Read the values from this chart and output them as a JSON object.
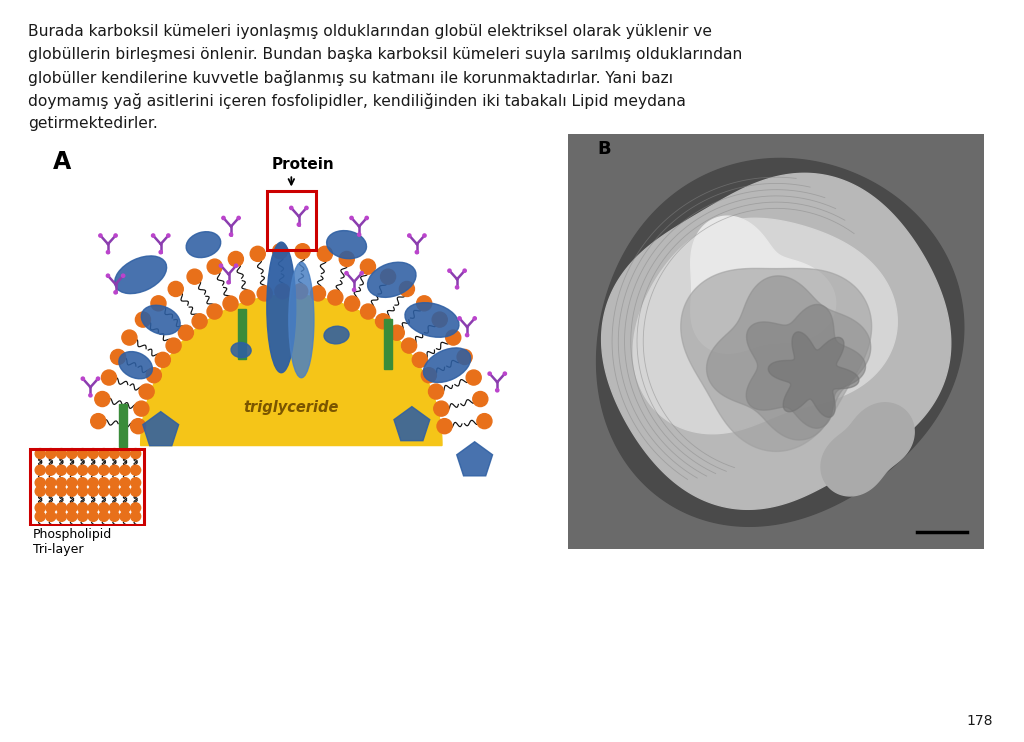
{
  "text_paragraph_line1": "Burada karboksil kümeleri iyonlaşmış olduklarından globül elektriksel olarak yüklenir ve",
  "text_paragraph_line2": "globüllerin birleşmesi önlenir. Bundan başka karboksil kümeleri suyla sarılmış olduklarından",
  "text_paragraph_line3": "globüller kendilerine kuvvetle bağlanmış su katmanı ile korunmaktadırlar. Yani bazı",
  "text_paragraph_line4": "doymamış yağ asitlerini içeren fosfolipidler, kendiliğinden iki tabakalı Lipid meydana",
  "text_paragraph_line5": "getirmektedirler.",
  "page_number": "178",
  "label_A": "A",
  "label_B": "B",
  "label_protein": "Protein",
  "label_triglyceride": "triglyceride",
  "label_phospholipid": "Phospholipid\nTri-layer",
  "bg_color": "#ffffff",
  "text_color": "#1a1a1a",
  "fig_width": 10.24,
  "fig_height": 7.42,
  "orange_head": "#E8701A",
  "yellow_core": "#F5C518",
  "blue_protein": "#2E5FA3",
  "blue_protein2": "#4A80C4",
  "green_bar": "#3A8C3A",
  "purple_ab": "#8B3DAF",
  "red_rect": "#CC0000"
}
